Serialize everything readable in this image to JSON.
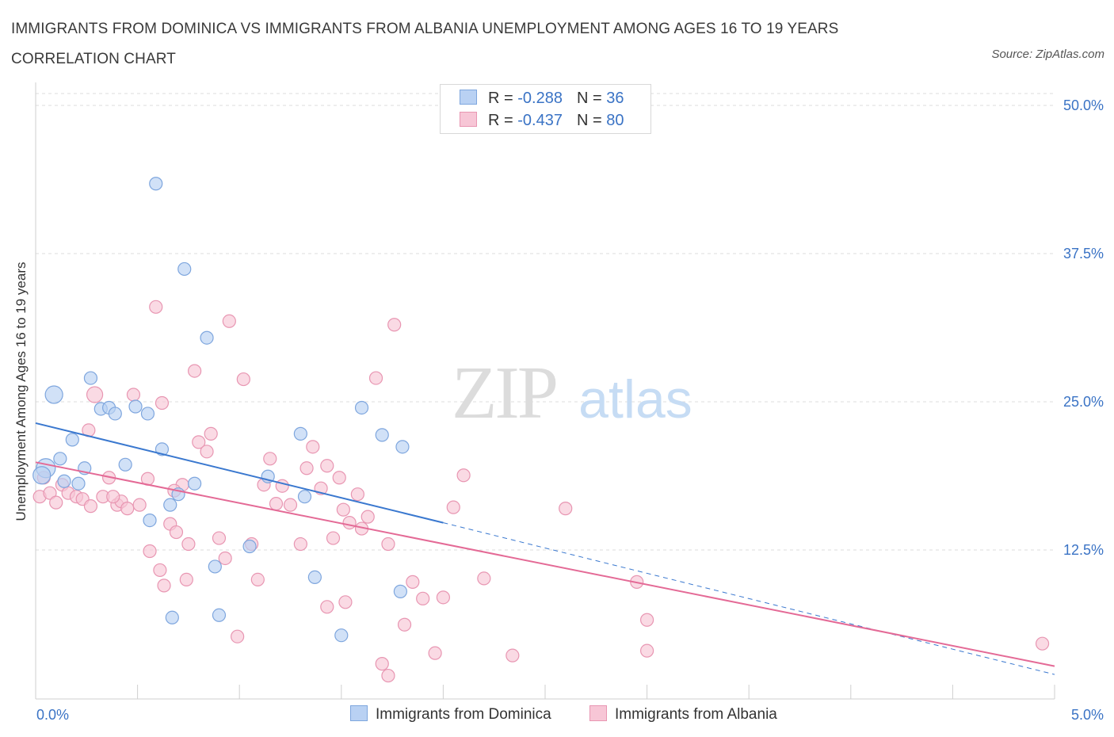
{
  "title": "IMMIGRANTS FROM DOMINICA VS IMMIGRANTS FROM ALBANIA UNEMPLOYMENT AMONG AGES 16 TO 19 YEARS CORRELATION CHART",
  "source": "Source: ZipAtlas.com",
  "watermark": {
    "zip": "ZIP",
    "atlas": "atlas"
  },
  "colors": {
    "dominica_fill": "#b9d1f3",
    "dominica_stroke": "#7ea6de",
    "dominica_line": "#3a78cf",
    "albania_fill": "#f7c6d6",
    "albania_stroke": "#e896b2",
    "albania_line": "#e46a96",
    "tick_label": "#3a73c5",
    "grid": "#dddddd"
  },
  "legend": {
    "rows": [
      {
        "r_label": "R = ",
        "r_value": "-0.288",
        "n_label": "N = ",
        "n_value": "36"
      },
      {
        "r_label": "R = ",
        "r_value": "-0.437",
        "n_label": "N = ",
        "n_value": "80"
      }
    ]
  },
  "bottom_legend": [
    "Immigrants from Dominica",
    "Immigrants from Albania"
  ],
  "chart_data": {
    "type": "scatter",
    "title": "IMMIGRANTS FROM DOMINICA VS IMMIGRANTS FROM ALBANIA UNEMPLOYMENT AMONG AGES 16 TO 19 YEARS CORRELATION CHART",
    "xlabel": "",
    "ylabel": "Unemployment Among Ages 16 to 19 years",
    "xlim": [
      0,
      5
    ],
    "ylim": [
      0,
      50
    ],
    "x_tick_labels": [
      "0.0%",
      "5.0%"
    ],
    "y_ticks": [
      12.5,
      25.0,
      37.5,
      50.0
    ],
    "y_tick_labels": [
      "12.5%",
      "25.0%",
      "37.5%",
      "50.0%"
    ],
    "grid": true,
    "legend_position": "top-center",
    "series": [
      {
        "name": "Immigrants from Dominica",
        "R": -0.288,
        "N": 36,
        "trend": {
          "x": [
            0,
            2.0
          ],
          "y": [
            23.2,
            14.8
          ],
          "dashed_extension_to": [
            5.0,
            2.0
          ]
        },
        "points": [
          [
            0.05,
            19.4
          ],
          [
            0.09,
            25.6
          ],
          [
            0.12,
            20.2
          ],
          [
            0.18,
            21.8
          ],
          [
            0.21,
            18.1
          ],
          [
            0.24,
            19.4
          ],
          [
            0.32,
            24.4
          ],
          [
            0.27,
            27.0
          ],
          [
            0.36,
            24.5
          ],
          [
            0.39,
            24.0
          ],
          [
            0.44,
            19.7
          ],
          [
            0.49,
            24.6
          ],
          [
            0.55,
            24.0
          ],
          [
            0.59,
            43.4
          ],
          [
            0.62,
            21.0
          ],
          [
            0.66,
            16.3
          ],
          [
            0.7,
            17.2
          ],
          [
            0.73,
            36.2
          ],
          [
            0.78,
            18.1
          ],
          [
            0.56,
            15.0
          ],
          [
            0.67,
            6.8
          ],
          [
            0.84,
            30.4
          ],
          [
            0.88,
            11.1
          ],
          [
            0.9,
            7.0
          ],
          [
            1.05,
            12.8
          ],
          [
            1.14,
            18.7
          ],
          [
            1.32,
            17.0
          ],
          [
            1.3,
            22.3
          ],
          [
            1.37,
            10.2
          ],
          [
            1.5,
            5.3
          ],
          [
            1.6,
            24.5
          ],
          [
            1.7,
            22.2
          ],
          [
            1.8,
            21.2
          ],
          [
            1.79,
            9.0
          ],
          [
            0.03,
            18.8
          ],
          [
            0.14,
            18.3
          ]
        ]
      },
      {
        "name": "Immigrants from Albania",
        "R": -0.437,
        "N": 80,
        "trend": {
          "x": [
            0,
            5.0
          ],
          "y": [
            19.9,
            2.7
          ]
        },
        "points": [
          [
            0.02,
            17.0
          ],
          [
            0.04,
            18.6
          ],
          [
            0.07,
            17.3
          ],
          [
            0.1,
            16.5
          ],
          [
            0.13,
            18.0
          ],
          [
            0.16,
            17.3
          ],
          [
            0.2,
            17.0
          ],
          [
            0.23,
            16.8
          ],
          [
            0.27,
            16.2
          ],
          [
            0.29,
            25.6
          ],
          [
            0.33,
            17.0
          ],
          [
            0.36,
            18.6
          ],
          [
            0.4,
            16.3
          ],
          [
            0.42,
            16.6
          ],
          [
            0.45,
            16.0
          ],
          [
            0.48,
            25.6
          ],
          [
            0.51,
            16.3
          ],
          [
            0.55,
            18.5
          ],
          [
            0.59,
            33.0
          ],
          [
            0.62,
            24.9
          ],
          [
            0.66,
            14.7
          ],
          [
            0.69,
            14.0
          ],
          [
            0.72,
            18.0
          ],
          [
            0.75,
            13.0
          ],
          [
            0.78,
            27.6
          ],
          [
            0.8,
            21.6
          ],
          [
            0.84,
            20.8
          ],
          [
            0.86,
            22.3
          ],
          [
            0.9,
            13.5
          ],
          [
            0.93,
            11.8
          ],
          [
            0.95,
            31.8
          ],
          [
            0.99,
            5.2
          ],
          [
            1.02,
            26.9
          ],
          [
            1.06,
            13.0
          ],
          [
            1.12,
            18.0
          ],
          [
            1.15,
            20.2
          ],
          [
            1.18,
            16.4
          ],
          [
            1.21,
            17.9
          ],
          [
            1.25,
            16.3
          ],
          [
            1.3,
            13.0
          ],
          [
            1.33,
            19.4
          ],
          [
            1.36,
            21.2
          ],
          [
            1.4,
            17.7
          ],
          [
            1.43,
            19.6
          ],
          [
            1.46,
            13.5
          ],
          [
            1.49,
            18.6
          ],
          [
            1.51,
            15.9
          ],
          [
            1.54,
            14.8
          ],
          [
            1.58,
            17.2
          ],
          [
            1.6,
            14.3
          ],
          [
            1.63,
            15.3
          ],
          [
            1.67,
            27.0
          ],
          [
            1.7,
            2.9
          ],
          [
            1.73,
            13.0
          ],
          [
            1.76,
            31.5
          ],
          [
            1.81,
            6.2
          ],
          [
            1.85,
            9.8
          ],
          [
            1.9,
            8.4
          ],
          [
            1.96,
            3.8
          ],
          [
            2.0,
            8.5
          ],
          [
            2.05,
            16.1
          ],
          [
            2.1,
            18.8
          ],
          [
            2.2,
            10.1
          ],
          [
            2.34,
            3.6
          ],
          [
            2.6,
            16.0
          ],
          [
            2.95,
            9.8
          ],
          [
            3.0,
            6.6
          ],
          [
            3.0,
            4.0
          ],
          [
            0.26,
            22.6
          ],
          [
            0.38,
            17.0
          ],
          [
            0.56,
            12.4
          ],
          [
            0.61,
            10.8
          ],
          [
            0.63,
            9.5
          ],
          [
            0.74,
            10.0
          ],
          [
            0.68,
            17.5
          ],
          [
            1.09,
            10.0
          ],
          [
            1.43,
            7.7
          ],
          [
            1.52,
            8.1
          ],
          [
            1.73,
            1.9
          ],
          [
            4.94,
            4.6
          ]
        ]
      }
    ]
  }
}
